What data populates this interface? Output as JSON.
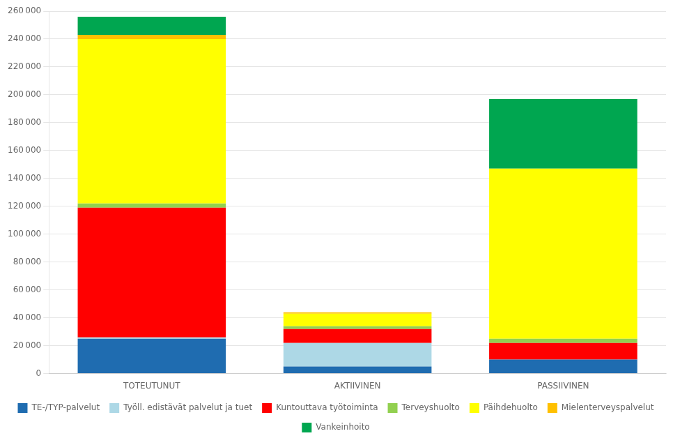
{
  "chart_data": {
    "type": "bar",
    "stacked": true,
    "categories": [
      "TOTEUTUNUT",
      "AKTIIVINEN",
      "PASSIIVINEN"
    ],
    "series": [
      {
        "name": "TE-/TYP-palvelut",
        "color": "#1F6CB0",
        "values": [
          25000,
          5000,
          10000
        ]
      },
      {
        "name": "Työll. edistävät palvelut ja tuet",
        "color": "#ADD8E6",
        "values": [
          1000,
          17000,
          0
        ]
      },
      {
        "name": "Kuntouttava työtoiminta",
        "color": "#FF0000",
        "values": [
          93000,
          10000,
          12000
        ]
      },
      {
        "name": "Terveyshuolto",
        "color": "#92D050",
        "values": [
          3000,
          2000,
          3000
        ]
      },
      {
        "name": "Päihdehuolto",
        "color": "#FFFF00",
        "values": [
          118000,
          9000,
          122000
        ]
      },
      {
        "name": "Mielenterveyspalvelut",
        "color": "#FFC000",
        "values": [
          3000,
          1000,
          0
        ]
      },
      {
        "name": "Vankeinhoito",
        "color": "#00A650",
        "values": [
          13000,
          0,
          50000
        ]
      }
    ],
    "ylim": [
      0,
      260000
    ],
    "yticks": [
      0,
      {
        "value": 20000,
        "label": "20 000"
      },
      {
        "value": 40000,
        "label": "40 000"
      },
      {
        "value": 60000,
        "label": "60 000"
      },
      {
        "value": 80000,
        "label": "80 000"
      },
      {
        "value": 100000,
        "label": "100 000"
      },
      {
        "value": 120000,
        "label": "120 000"
      },
      {
        "value": 140000,
        "label": "140 000"
      },
      {
        "value": 160000,
        "label": "160 000"
      },
      {
        "value": 180000,
        "label": "180 000"
      },
      {
        "value": 200000,
        "label": "200 000"
      },
      {
        "value": 220000,
        "label": "220 000"
      },
      {
        "value": 240000,
        "label": "240 000"
      },
      {
        "value": 260000,
        "label": "260 000"
      }
    ],
    "grid": "y",
    "legend": "bottom"
  }
}
